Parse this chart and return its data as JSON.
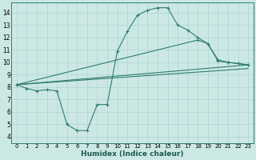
{
  "xlabel": "Humidex (Indice chaleur)",
  "background_color": "#cce8e5",
  "grid_color": "#aed4d0",
  "line_color": "#2e7d6e",
  "xlim": [
    -0.5,
    23.5
  ],
  "ylim": [
    3.5,
    14.8
  ],
  "yticks": [
    4,
    5,
    6,
    7,
    8,
    9,
    10,
    11,
    12,
    13,
    14
  ],
  "xticks": [
    0,
    1,
    2,
    3,
    4,
    5,
    6,
    7,
    8,
    9,
    10,
    11,
    12,
    13,
    14,
    15,
    16,
    17,
    18,
    19,
    20,
    21,
    22,
    23
  ],
  "lines": [
    {
      "x": [
        0,
        1,
        2,
        3,
        4,
        5,
        6,
        7,
        8,
        9,
        10,
        11,
        12,
        13,
        14,
        15,
        16,
        17,
        18,
        19,
        20,
        21,
        22,
        23
      ],
      "y": [
        8.2,
        7.9,
        7.7,
        7.8,
        7.7,
        5.0,
        4.5,
        4.5,
        6.6,
        6.6,
        10.9,
        12.5,
        13.8,
        14.2,
        14.4,
        14.4,
        13.0,
        12.6,
        12.0,
        11.5,
        10.1,
        10.0,
        9.9,
        9.8
      ],
      "marker": true
    },
    {
      "x": [
        0,
        18,
        19,
        20,
        21,
        22,
        23
      ],
      "y": [
        8.2,
        11.8,
        11.5,
        10.2,
        10.0,
        9.9,
        9.8
      ],
      "marker": true
    },
    {
      "x": [
        0,
        23
      ],
      "y": [
        8.2,
        9.8
      ],
      "marker": false
    },
    {
      "x": [
        0,
        23
      ],
      "y": [
        8.2,
        9.5
      ],
      "marker": false
    }
  ]
}
